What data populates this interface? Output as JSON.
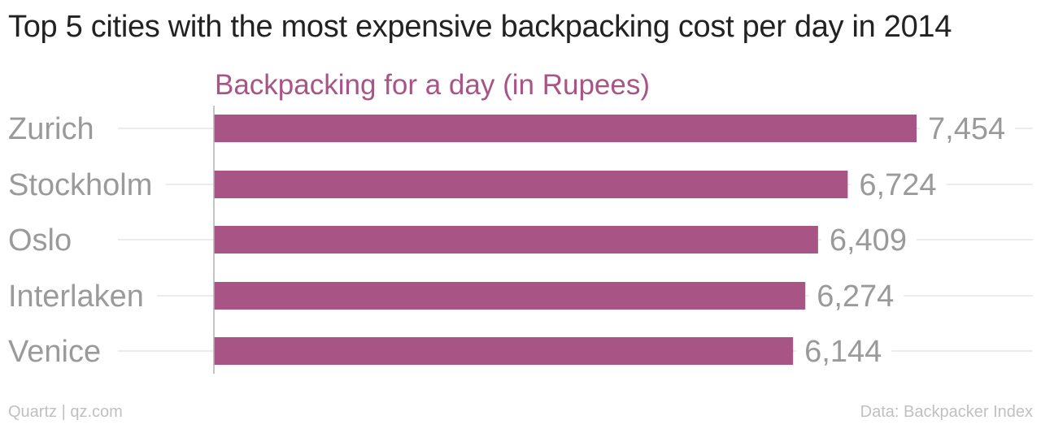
{
  "title": "Top 5 cities with the most expensive backpacking cost per day in 2014",
  "footer": {
    "credit": "Quartz | qz.com",
    "source": "Data: Backpacker Index"
  },
  "colors": {
    "bar": "#a85586",
    "series_label": "#a85586",
    "category_text": "#9a9a9a",
    "value_text": "#9a9a9a",
    "gridline": "#ececec",
    "axis": "#b0b0b0"
  },
  "chart_data": {
    "type": "bar",
    "orientation": "horizontal",
    "categories": [
      "Zurich",
      "Stockholm",
      "Oslo",
      "Interlaken",
      "Venice"
    ],
    "series": [
      {
        "name": "Backpacking for a day (in Rupees)",
        "values": [
          7454,
          6724,
          6409,
          6274,
          6144
        ],
        "value_labels": [
          "7,454",
          "6,724",
          "6,409",
          "6,274",
          "6,144"
        ]
      }
    ],
    "xlim": [
      0,
      7454
    ],
    "grid": true,
    "legend": "top"
  }
}
